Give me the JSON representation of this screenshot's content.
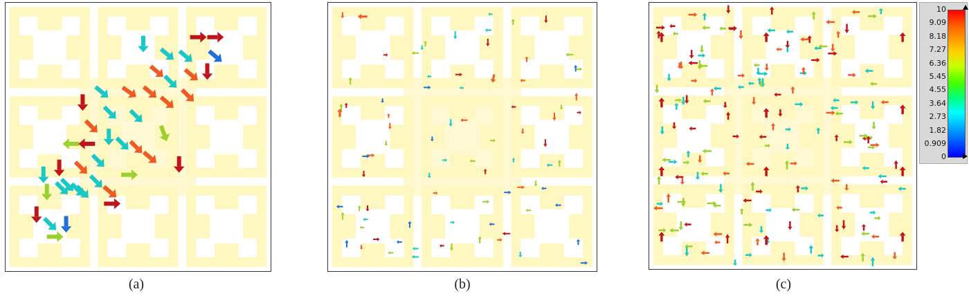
{
  "captions": [
    "(a)",
    "(b)",
    "(c)"
  ],
  "colorbar": {
    "ticks": [
      "10",
      "9.09",
      "8.18",
      "7.27",
      "6.36",
      "5.45",
      "4.55",
      "3.64",
      "2.73",
      "1.82",
      "0.909",
      "0"
    ]
  },
  "colors": {
    "pattern_fill": "#fff7c0",
    "high": "#c0141b",
    "mid_high": "#ee5a24",
    "mid": "#9bd12f",
    "low_mid": "#19c8c6",
    "low": "#1e6fd9"
  }
}
